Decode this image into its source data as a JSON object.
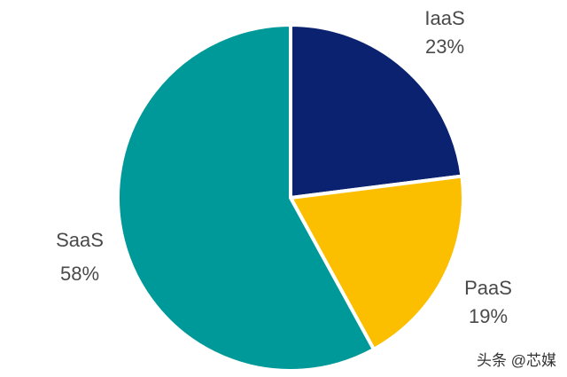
{
  "chart_data": {
    "type": "pie",
    "title": "",
    "slices": [
      {
        "label": "IaaS",
        "value": 23,
        "value_label": "23%",
        "color": "#0a2270"
      },
      {
        "label": "PaaS",
        "value": 19,
        "value_label": "19%",
        "color": "#fcbf00"
      },
      {
        "label": "SaaS",
        "value": 58,
        "value_label": "58%",
        "color": "#009999"
      }
    ],
    "legend": "none"
  },
  "watermark": {
    "text": "头条 @芯媒"
  }
}
